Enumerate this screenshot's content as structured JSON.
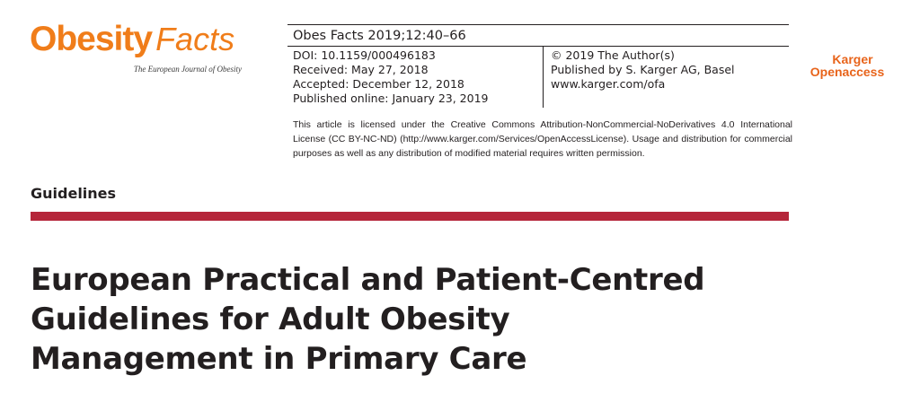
{
  "colors": {
    "text": "#231f20",
    "logo_orange": "#f07d1a",
    "karger_orange": "#e8641b",
    "section_band": "#b5263a"
  },
  "logo": {
    "icon": "obesity-facts-logo",
    "word": "Obesity",
    "script": "Facts",
    "subtitle": "The European Journal of Obesity"
  },
  "meta": {
    "journal_ref": "Obes Facts 2019;12:40–66",
    "left": [
      "DOI: 10.1159/000496183",
      "Received: May 27, 2018",
      "Accepted: December 12, 2018",
      "Published online: January 23, 2019"
    ],
    "right": [
      "© 2019 The Author(s)",
      "Published by S. Karger AG, Basel",
      "www.karger.com/ofa"
    ]
  },
  "license": "This article is licensed under the Creative Commons Attribution-NonCommercial-NoDerivatives 4.0 International License (CC BY-NC-ND) (http://www.karger.com/Services/OpenAccessLicense). Usage and distribution for commercial purposes as well as any distribution of modified material requires written permission.",
  "karger_logo": {
    "icon": "karger-open-access-logo",
    "top": "Karger",
    "bottom_open": "Open",
    "bottom_access": "access"
  },
  "section_label": "Guidelines",
  "title": "European Practical and Patient-Centred Guidelines for Adult Obesity Management in Primary Care"
}
